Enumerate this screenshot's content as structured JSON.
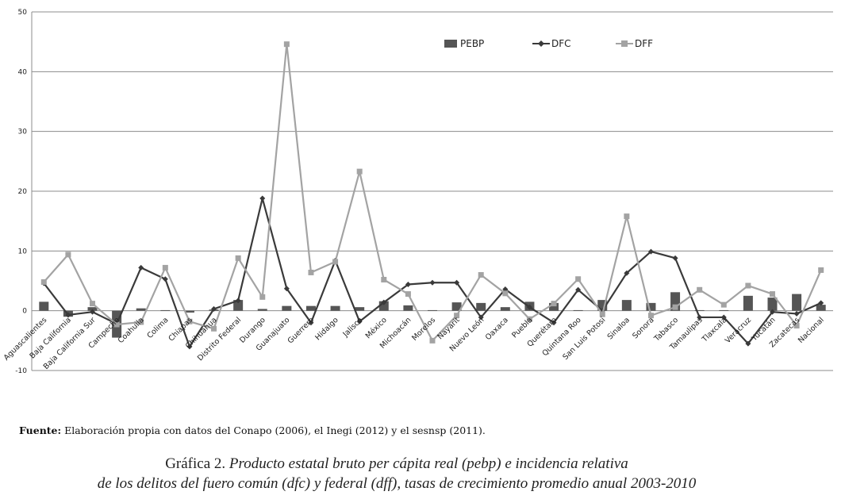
{
  "chart_data": {
    "type": "bar+line",
    "title": "",
    "xlabel": "",
    "ylabel": "",
    "ylim": [
      -10,
      50
    ],
    "yticks": [
      -10,
      0,
      10,
      20,
      30,
      40,
      50
    ],
    "grid": true,
    "legend_position": "top-right",
    "categories": [
      "Aguascalientes",
      "Baja California",
      "Baja California Sur",
      "Campeche",
      "Coahuila",
      "Colima",
      "Chiapas",
      "Chihuahua",
      "Distrito Federal",
      "Durango",
      "Guanajuato",
      "Guerrero",
      "Hidalgo",
      "Jalisco",
      "México",
      "Michoacán",
      "Morelos",
      "Nayarit",
      "Nuevo León",
      "Oaxaca",
      "Puebla",
      "Querétaro",
      "Quintana Roo",
      "San Luis Potosí",
      "Sinaloa",
      "Sonora",
      "Tabasco",
      "Tamaulipas",
      "Tlaxcala",
      "Veracruz",
      "Yucatán",
      "Zacatecas",
      "Nacional"
    ],
    "series": [
      {
        "name": "PEBP",
        "type": "bar",
        "color": "#555555",
        "values": [
          1.5,
          -1.0,
          0.6,
          -4.5,
          0.4,
          0.1,
          -0.3,
          0.2,
          1.8,
          0.3,
          0.8,
          0.8,
          0.8,
          0.6,
          1.6,
          0.9,
          0.1,
          1.4,
          1.3,
          0.6,
          1.5,
          1.3,
          0.1,
          1.8,
          1.8,
          1.3,
          3.1,
          0.1,
          0.1,
          2.5,
          2.2,
          2.8,
          1.0
        ]
      },
      {
        "name": "DFC",
        "type": "line",
        "color": "#3a3a3a",
        "marker": "diamond",
        "values": [
          4.6,
          -0.7,
          -0.2,
          -2.2,
          7.2,
          5.3,
          -6.0,
          0.3,
          1.7,
          18.8,
          3.7,
          -2.0,
          8.4,
          -1.8,
          1.4,
          4.4,
          4.7,
          4.7,
          -1.1,
          3.6,
          0.6,
          -2.0,
          3.5,
          0.0,
          6.3,
          9.9,
          8.8,
          -1.1,
          -1.1,
          -5.5,
          -0.2,
          -0.5,
          1.3
        ]
      },
      {
        "name": "DFF",
        "type": "line",
        "color": "#a3a3a3",
        "marker": "square",
        "values": [
          4.8,
          9.4,
          1.2,
          -2.3,
          -1.9,
          7.2,
          -1.8,
          -3.0,
          8.8,
          2.3,
          44.6,
          6.4,
          8.2,
          23.3,
          5.2,
          2.8,
          -5.0,
          -0.8,
          6.0,
          2.9,
          -1.4,
          1.2,
          5.3,
          -0.6,
          15.8,
          -0.8,
          0.6,
          3.5,
          1.0,
          4.2,
          2.8,
          -2.5,
          6.8
        ]
      }
    ]
  },
  "source": {
    "label": "Fuente:",
    "text": " Elaboración propia con datos del Conapo (2006), el Inegi (2012) y el sesnsp (2011)."
  },
  "caption": {
    "number": "Gráfica 2.",
    "line1": " Producto estatal bruto per cápita real (pebp) e incidencia relativa",
    "line2": "de los delitos del fuero común (dfc) y federal (dff), tasas de crecimiento promedio anual 2003-2010"
  }
}
